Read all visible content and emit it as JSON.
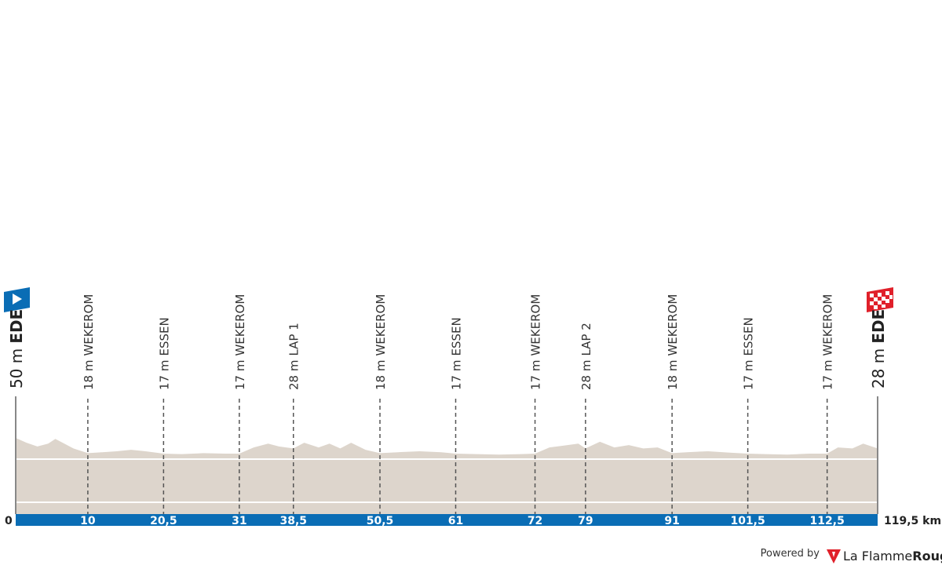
{
  "chart_data": {
    "type": "area",
    "color": "#ddd5cc",
    "bar_color": "#0a6db5",
    "xlim": [
      0,
      119.5
    ],
    "ylim": [
      -110,
      50
    ],
    "x": [
      0,
      1.5,
      3,
      4.5,
      5.5,
      7,
      8,
      10,
      12,
      14,
      16,
      18,
      20.5,
      23,
      26,
      29,
      31,
      33,
      35,
      36.5,
      38.5,
      40,
      42,
      43.5,
      45,
      46.5,
      48.5,
      50.5,
      53,
      56,
      59,
      61,
      64,
      67,
      70,
      72,
      74,
      76,
      78,
      79,
      81,
      83,
      85,
      87,
      89,
      91,
      93,
      96,
      99,
      101.5,
      104,
      107,
      110,
      112.5,
      114,
      116,
      117.5,
      119.5
    ],
    "values": [
      50,
      40,
      32,
      38,
      48,
      36,
      28,
      18,
      20,
      22,
      25,
      22,
      17,
      16,
      18,
      17,
      17,
      30,
      38,
      32,
      28,
      40,
      30,
      38,
      28,
      40,
      25,
      18,
      20,
      22,
      20,
      17,
      16,
      15,
      16,
      17,
      30,
      34,
      38,
      28,
      42,
      30,
      35,
      28,
      30,
      18,
      20,
      22,
      19,
      17,
      16,
      15,
      17,
      17,
      30,
      28,
      38,
      28
    ],
    "start": {
      "km": 0,
      "altitude": "50 m",
      "name": "EDE"
    },
    "finish": {
      "km": {
        "value": 119.5,
        "label": "119,5 km"
      },
      "altitude": "28 m",
      "name": "EDE"
    },
    "checkpoints": [
      {
        "km": 10,
        "altitude": "18 m",
        "name": "WEKEROM"
      },
      {
        "km": {
          "value": 20.5,
          "label": "20,5"
        },
        "altitude": "17 m",
        "name": "ESSEN"
      },
      {
        "km": 31,
        "altitude": "17 m",
        "name": "WEKEROM"
      },
      {
        "km": {
          "value": 38.5,
          "label": "38,5"
        },
        "altitude": "28 m",
        "name": "LAP 1"
      },
      {
        "km": {
          "value": 50.5,
          "label": "50,5"
        },
        "altitude": "18 m",
        "name": "WEKEROM"
      },
      {
        "km": 61,
        "altitude": "17 m",
        "name": "ESSEN"
      },
      {
        "km": 72,
        "altitude": "17 m",
        "name": "WEKEROM"
      },
      {
        "km": 79,
        "altitude": "28 m",
        "name": "LAP 2"
      },
      {
        "km": 91,
        "altitude": "18 m",
        "name": "WEKEROM"
      },
      {
        "km": {
          "value": 101.5,
          "label": "101,5"
        },
        "altitude": "17 m",
        "name": "ESSEN"
      },
      {
        "km": {
          "value": 112.5,
          "label": "112,5"
        },
        "altitude": "17 m",
        "name": "WEKEROM"
      }
    ]
  },
  "footer": {
    "powered_by": "Powered by",
    "brand_a": "La Flamme",
    "brand_b": "Rouge"
  }
}
